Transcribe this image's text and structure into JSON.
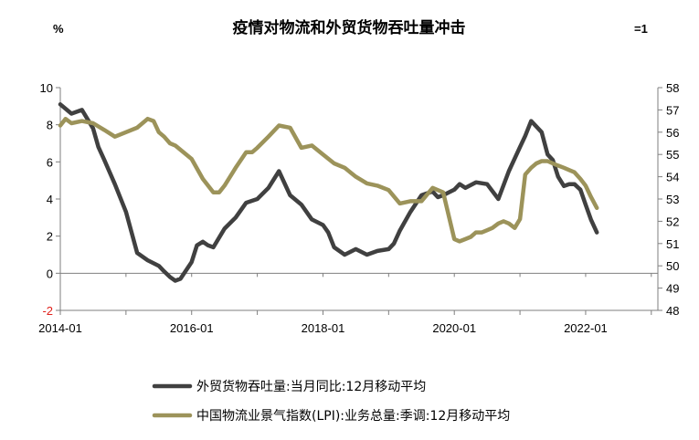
{
  "chart_data": {
    "type": "line",
    "title": "疫情对物流和外贸货物吞吐量冲击",
    "left_unit": "%",
    "right_unit": "=1",
    "left_axis": {
      "min": -2,
      "max": 10,
      "ticks": [
        "-2",
        "0",
        "2",
        "4",
        "6",
        "8",
        "10"
      ],
      "tick_values": [
        -2,
        0,
        2,
        4,
        6,
        8,
        10
      ]
    },
    "right_axis": {
      "min": 48,
      "max": 58,
      "ticks": [
        "48",
        "49",
        "50",
        "51",
        "52",
        "53",
        "54",
        "55",
        "56",
        "57",
        "58"
      ],
      "tick_values": [
        48,
        49,
        50,
        51,
        52,
        53,
        54,
        55,
        56,
        57,
        58
      ]
    },
    "x_axis": {
      "min": 2014.0,
      "max": 2023.1,
      "ticks": [
        "2014-01",
        "2016-01",
        "2018-01",
        "2020-01",
        "2022-01"
      ],
      "tick_values": [
        2014.0,
        2016.0,
        2018.0,
        2020.0,
        2022.0
      ]
    },
    "grid": false,
    "legend_position": "bottom",
    "colors": {
      "series1": "#404040",
      "series2": "#9c935a",
      "negative_tick": "#e0201b"
    },
    "series": [
      {
        "name": "外贸货物吞吐量:当月同比:12月移动平均",
        "axis": "left",
        "color": "#404040",
        "x": [
          2014.0,
          2014.17,
          2014.33,
          2014.5,
          2014.58,
          2014.67,
          2014.83,
          2015.0,
          2015.17,
          2015.33,
          2015.5,
          2015.58,
          2015.67,
          2015.75,
          2015.83,
          2016.0,
          2016.08,
          2016.17,
          2016.25,
          2016.33,
          2016.5,
          2016.67,
          2016.83,
          2017.0,
          2017.17,
          2017.33,
          2017.5,
          2017.67,
          2017.83,
          2018.0,
          2018.08,
          2018.17,
          2018.33,
          2018.5,
          2018.67,
          2018.83,
          2019.0,
          2019.08,
          2019.17,
          2019.33,
          2019.5,
          2019.58,
          2019.67,
          2019.75,
          2019.83,
          2020.0,
          2020.08,
          2020.17,
          2020.33,
          2020.5,
          2020.67,
          2020.83,
          2021.0,
          2021.08,
          2021.17,
          2021.33,
          2021.42,
          2021.5,
          2021.58,
          2021.67,
          2021.75,
          2021.83,
          2021.92,
          2022.0,
          2022.08,
          2022.17
        ],
        "values": [
          9.1,
          8.6,
          8.8,
          7.8,
          6.8,
          6.1,
          4.8,
          3.3,
          1.1,
          0.7,
          0.4,
          0.1,
          -0.2,
          -0.4,
          -0.3,
          0.6,
          1.5,
          1.7,
          1.5,
          1.4,
          2.4,
          3.0,
          3.8,
          4.0,
          4.6,
          5.5,
          4.2,
          3.7,
          2.9,
          2.6,
          2.2,
          1.4,
          1.0,
          1.3,
          1.0,
          1.2,
          1.3,
          1.6,
          2.3,
          3.3,
          4.2,
          4.3,
          4.4,
          4.1,
          4.2,
          4.5,
          4.8,
          4.6,
          4.9,
          4.8,
          4.0,
          5.5,
          6.8,
          7.4,
          8.2,
          7.6,
          6.4,
          6.1,
          5.2,
          4.7,
          4.8,
          4.8,
          4.5,
          3.7,
          2.9,
          2.2
        ]
      },
      {
        "name": "中国物流业景气指数(LPI):业务总量:季调:12月移动平均",
        "axis": "right",
        "color": "#9c935a",
        "x": [
          2014.0,
          2014.08,
          2014.17,
          2014.33,
          2014.5,
          2014.67,
          2014.83,
          2015.0,
          2015.17,
          2015.33,
          2015.42,
          2015.5,
          2015.58,
          2015.67,
          2015.75,
          2016.0,
          2016.17,
          2016.33,
          2016.42,
          2016.5,
          2016.67,
          2016.83,
          2016.92,
          2017.0,
          2017.17,
          2017.33,
          2017.5,
          2017.67,
          2017.83,
          2018.0,
          2018.17,
          2018.33,
          2018.5,
          2018.67,
          2018.83,
          2019.0,
          2019.17,
          2019.33,
          2019.5,
          2019.67,
          2019.83,
          2020.0,
          2020.08,
          2020.17,
          2020.25,
          2020.33,
          2020.42,
          2020.5,
          2020.58,
          2020.67,
          2020.75,
          2020.83,
          2020.92,
          2021.0,
          2021.08,
          2021.17,
          2021.25,
          2021.33,
          2021.42,
          2021.5,
          2021.58,
          2021.67,
          2021.75,
          2021.83,
          2021.92,
          2022.0,
          2022.08,
          2022.17
        ],
        "values": [
          56.3,
          56.6,
          56.4,
          56.5,
          56.4,
          56.1,
          55.8,
          56.0,
          56.2,
          56.6,
          56.5,
          56.0,
          55.8,
          55.5,
          55.4,
          54.8,
          53.9,
          53.3,
          53.3,
          53.6,
          54.4,
          55.1,
          55.1,
          55.3,
          55.8,
          56.3,
          56.2,
          55.3,
          55.4,
          55.0,
          54.6,
          54.4,
          54.0,
          53.7,
          53.6,
          53.4,
          52.8,
          52.9,
          52.9,
          53.5,
          53.3,
          51.2,
          51.1,
          51.2,
          51.3,
          51.5,
          51.5,
          51.6,
          51.7,
          51.9,
          52.0,
          51.9,
          51.7,
          52.1,
          54.1,
          54.4,
          54.6,
          54.7,
          54.7,
          54.6,
          54.5,
          54.4,
          54.3,
          54.2,
          53.9,
          53.6,
          53.1,
          52.6
        ]
      }
    ]
  }
}
